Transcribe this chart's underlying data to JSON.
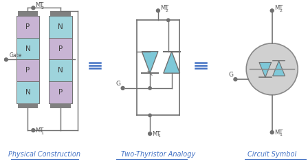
{
  "bg_color": "#ffffff",
  "text_color_blue": "#4472C4",
  "text_color_dark": "#505050",
  "color_p": "#c8b4d4",
  "color_n": "#9ed4dc",
  "color_cap": "#808080",
  "color_wire": "#707070",
  "color_dot": "#707070",
  "color_thyristor": "#7ec8d8",
  "color_circle_bg": "#d0d0d0",
  "title1": "Physical Construction",
  "title2": "Two-Thyristor Analogy",
  "title3": "Circuit Symbol",
  "equiv_color": "#4472C4",
  "fig_width": 4.48,
  "fig_height": 2.38,
  "dpi": 100
}
